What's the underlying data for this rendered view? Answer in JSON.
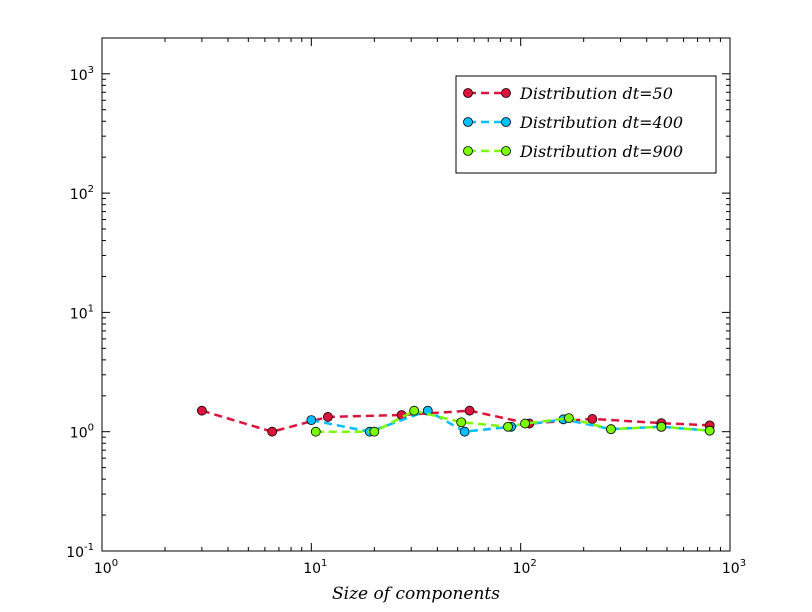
{
  "chart_data": {
    "type": "line",
    "xscale": "log",
    "yscale": "log",
    "xlim": [
      1,
      1000
    ],
    "ylim": [
      0.1,
      2000
    ],
    "x_ticks": [
      {
        "value": 1,
        "base": "10",
        "exp": "0"
      },
      {
        "value": 10,
        "base": "10",
        "exp": "1"
      },
      {
        "value": 100,
        "base": "10",
        "exp": "2"
      },
      {
        "value": 1000,
        "base": "10",
        "exp": "3"
      }
    ],
    "y_ticks": [
      {
        "value": 0.1,
        "base": "10",
        "exp": "-1"
      },
      {
        "value": 1,
        "base": "10",
        "exp": "0"
      },
      {
        "value": 10,
        "base": "10",
        "exp": "1"
      },
      {
        "value": 100,
        "base": "10",
        "exp": "2"
      },
      {
        "value": 1000,
        "base": "10",
        "exp": "3"
      }
    ],
    "xlabel": "Size of components",
    "ylabel": "",
    "title": "",
    "grid": false,
    "legend_position": "top-right",
    "series": [
      {
        "name": "Distribution dt=50",
        "color": "#dc143c",
        "line_style": "dashed",
        "marker": "circle",
        "points": [
          [
            3,
            1.5
          ],
          [
            6.5,
            1.0
          ],
          [
            12,
            1.33
          ],
          [
            27,
            1.38
          ],
          [
            57,
            1.5
          ],
          [
            110,
            1.17
          ],
          [
            220,
            1.28
          ],
          [
            470,
            1.18
          ],
          [
            800,
            1.13
          ]
        ]
      },
      {
        "name": "Distribution dt=400",
        "color": "#00bfff",
        "line_style": "dashed",
        "marker": "circle",
        "points": [
          [
            10,
            1.25
          ],
          [
            19,
            1.0
          ],
          [
            36,
            1.5
          ],
          [
            54,
            1.0
          ],
          [
            90,
            1.1
          ],
          [
            160,
            1.27
          ],
          [
            270,
            1.05
          ],
          [
            470,
            1.1
          ],
          [
            800,
            1.02
          ]
        ]
      },
      {
        "name": "Distribution dt=900",
        "color": "#7cfc00",
        "line_style": "dashed",
        "marker": "circle",
        "points": [
          [
            10.5,
            1.0
          ],
          [
            20,
            1.0
          ],
          [
            31,
            1.5
          ],
          [
            52,
            1.2
          ],
          [
            87,
            1.1
          ],
          [
            105,
            1.17
          ],
          [
            170,
            1.3
          ],
          [
            270,
            1.05
          ],
          [
            470,
            1.1
          ],
          [
            800,
            1.02
          ]
        ]
      }
    ]
  }
}
